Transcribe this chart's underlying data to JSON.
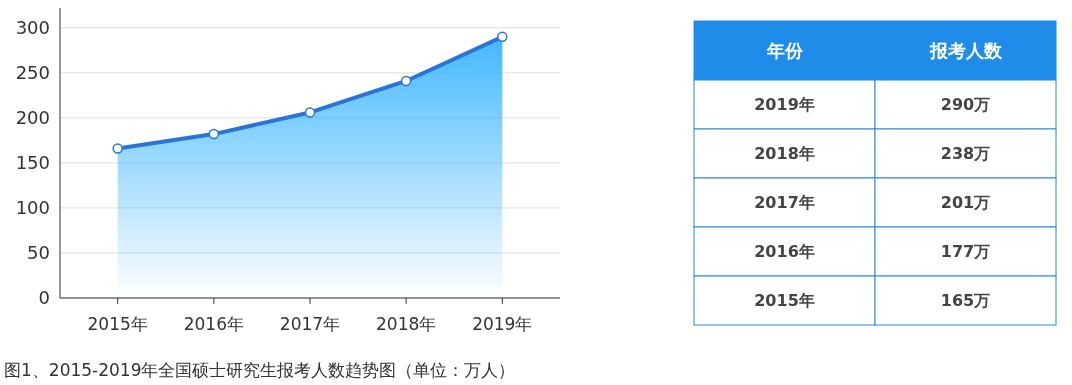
{
  "chart_data": {
    "type": "area",
    "categories": [
      "2015年",
      "2016年",
      "2017年",
      "2018年",
      "2019年"
    ],
    "values": [
      166,
      182,
      206,
      241,
      290
    ],
    "color": "#2a74d9",
    "ylim": [
      0,
      322
    ],
    "yticks": [
      0,
      50,
      100,
      150,
      200,
      250,
      300
    ],
    "grid": "y",
    "marker": "circle",
    "annotations": [
      "图1、2015-2019年全国硕士研究生报考人数趋势图（单位：万人）",
      "年份",
      "报考人数",
      "2019年",
      "290万",
      "2018年",
      "238万",
      "2017年",
      "201万",
      "2016年",
      "177万",
      "2015年",
      "165万"
    ]
  }
}
